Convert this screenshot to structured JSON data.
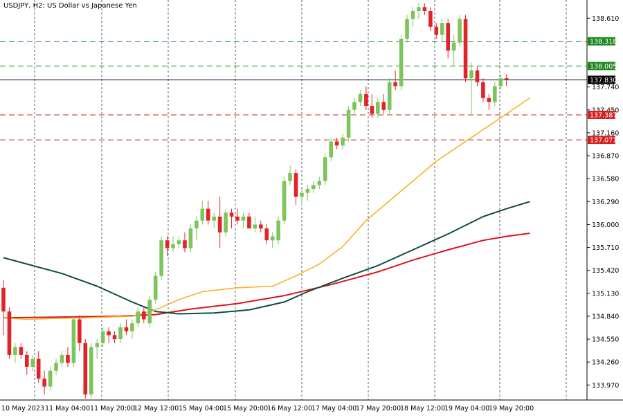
{
  "chart_data": {
    "type": "candlestick",
    "title": "USDJPY, H2:  US Dollar vs Japanese Yen",
    "ylim": [
      133.78,
      138.84
    ],
    "y_ticks": [
      "138.610",
      "137.740",
      "137.450",
      "137.160",
      "136.870",
      "136.580",
      "136.290",
      "136.000",
      "135.710",
      "135.420",
      "135.130",
      "134.840",
      "134.550",
      "134.260",
      "133.970"
    ],
    "x_labels": [
      "10 May 2023",
      "11 May 04:00",
      "11 May 20:00",
      "12 May 12:00",
      "15 May 04:00",
      "15 May 20:00",
      "16 May 12:00",
      "17 May 04:00",
      "17 May 20:00",
      "18 May 12:00",
      "19 May 04:00",
      "19 May 20:00"
    ],
    "current_price": {
      "value": "137.830",
      "color": "#000000"
    },
    "levels": [
      {
        "value": "138.318",
        "color": "#1e8a1e"
      },
      {
        "value": "138.005",
        "color": "#1e8a1e"
      },
      {
        "value": "137.387",
        "color": "#d62020"
      },
      {
        "value": "137.071",
        "color": "#d62020"
      }
    ],
    "colors": {
      "bull": "#7dc45b",
      "bear": "#e0242a",
      "ma_fast": "#f5b324",
      "ma_mid": "#0e4d3e",
      "ma_slow": "#d9141b",
      "grid": "#333333"
    },
    "candles": [
      [
        135.2,
        135.3,
        134.6,
        134.9
      ],
      [
        134.9,
        134.95,
        134.3,
        134.35
      ],
      [
        134.35,
        134.5,
        134.25,
        134.45
      ],
      [
        134.45,
        134.5,
        134.3,
        134.35
      ],
      [
        134.35,
        134.4,
        134.1,
        134.2
      ],
      [
        134.2,
        134.35,
        134.15,
        134.3
      ],
      [
        134.3,
        134.4,
        134.0,
        134.05
      ],
      [
        134.05,
        134.15,
        133.85,
        133.95
      ],
      [
        133.95,
        134.2,
        133.9,
        134.15
      ],
      [
        134.15,
        134.3,
        134.1,
        134.25
      ],
      [
        134.25,
        134.4,
        134.2,
        134.35
      ],
      [
        134.35,
        134.45,
        134.2,
        134.25
      ],
      [
        134.25,
        134.85,
        134.2,
        134.8
      ],
      [
        134.8,
        134.85,
        134.4,
        134.5
      ],
      [
        134.5,
        134.55,
        133.8,
        133.85
      ],
      [
        133.85,
        134.5,
        133.8,
        134.45
      ],
      [
        134.45,
        134.55,
        134.3,
        134.5
      ],
      [
        134.5,
        134.7,
        134.45,
        134.65
      ],
      [
        134.65,
        134.7,
        134.5,
        134.6
      ],
      [
        134.6,
        134.65,
        134.5,
        134.55
      ],
      [
        134.55,
        134.75,
        134.5,
        134.7
      ],
      [
        134.7,
        134.8,
        134.6,
        134.65
      ],
      [
        134.65,
        134.8,
        134.55,
        134.75
      ],
      [
        134.75,
        134.95,
        134.7,
        134.9
      ],
      [
        134.9,
        134.95,
        134.75,
        134.8
      ],
      [
        134.75,
        135.1,
        134.7,
        135.05
      ],
      [
        135.05,
        135.4,
        135.0,
        135.35
      ],
      [
        135.35,
        135.85,
        135.3,
        135.8
      ],
      [
        135.8,
        135.85,
        135.6,
        135.7
      ],
      [
        135.7,
        135.85,
        135.65,
        135.75
      ],
      [
        135.75,
        135.85,
        135.7,
        135.8
      ],
      [
        135.8,
        135.9,
        135.65,
        135.7
      ],
      [
        135.7,
        136.0,
        135.65,
        135.95
      ],
      [
        135.95,
        136.1,
        135.8,
        136.05
      ],
      [
        136.05,
        136.3,
        136.0,
        136.2
      ],
      [
        136.2,
        136.3,
        136.0,
        136.05
      ],
      [
        136.05,
        136.15,
        135.95,
        136.1
      ],
      [
        136.1,
        136.35,
        135.7,
        135.9
      ],
      [
        135.9,
        136.2,
        135.85,
        136.15
      ],
      [
        136.15,
        136.2,
        135.95,
        136.1
      ],
      [
        136.1,
        136.2,
        136.0,
        136.05
      ],
      [
        136.05,
        136.15,
        135.95,
        136.1
      ],
      [
        136.1,
        136.15,
        135.95,
        135.95
      ],
      [
        135.95,
        136.1,
        135.9,
        136.0
      ],
      [
        136.0,
        136.05,
        135.9,
        135.95
      ],
      [
        135.95,
        136.0,
        135.75,
        135.8
      ],
      [
        135.8,
        135.9,
        135.7,
        135.85
      ],
      [
        135.8,
        136.1,
        135.75,
        136.05
      ],
      [
        136.05,
        136.6,
        136.0,
        136.55
      ],
      [
        136.55,
        136.75,
        136.5,
        136.65
      ],
      [
        136.65,
        136.7,
        136.25,
        136.35
      ],
      [
        136.35,
        136.45,
        136.25,
        136.4
      ],
      [
        136.4,
        136.5,
        136.3,
        136.45
      ],
      [
        136.45,
        136.55,
        136.4,
        136.5
      ],
      [
        136.5,
        136.6,
        136.45,
        136.55
      ],
      [
        136.55,
        136.9,
        136.5,
        136.85
      ],
      [
        136.85,
        137.1,
        136.8,
        137.05
      ],
      [
        137.05,
        137.1,
        136.95,
        137.0
      ],
      [
        137.0,
        137.15,
        136.95,
        137.1
      ],
      [
        137.1,
        137.5,
        137.05,
        137.45
      ],
      [
        137.45,
        137.6,
        137.4,
        137.55
      ],
      [
        137.55,
        137.7,
        137.5,
        137.65
      ],
      [
        137.65,
        137.75,
        137.45,
        137.5
      ],
      [
        137.5,
        137.65,
        137.35,
        137.4
      ],
      [
        137.4,
        137.6,
        137.35,
        137.55
      ],
      [
        137.55,
        137.65,
        137.4,
        137.45
      ],
      [
        137.45,
        137.85,
        137.4,
        137.8
      ],
      [
        137.8,
        137.95,
        137.7,
        137.75
      ],
      [
        137.75,
        138.4,
        137.7,
        138.35
      ],
      [
        138.35,
        138.65,
        138.3,
        138.6
      ],
      [
        138.6,
        138.75,
        138.5,
        138.7
      ],
      [
        138.7,
        138.8,
        138.6,
        138.75
      ],
      [
        138.75,
        138.8,
        138.65,
        138.7
      ],
      [
        138.7,
        138.75,
        138.45,
        138.5
      ],
      [
        138.5,
        138.55,
        138.35,
        138.4
      ],
      [
        138.4,
        138.6,
        138.3,
        138.55
      ],
      [
        138.55,
        138.6,
        138.1,
        138.2
      ],
      [
        138.2,
        138.4,
        138.0,
        138.3
      ],
      [
        138.3,
        138.65,
        138.25,
        138.6
      ],
      [
        138.6,
        138.65,
        137.8,
        137.85
      ],
      [
        137.85,
        138.05,
        137.4,
        137.95
      ],
      [
        137.95,
        138.0,
        137.75,
        137.8
      ],
      [
        137.8,
        137.85,
        137.55,
        137.6
      ],
      [
        137.6,
        137.65,
        137.45,
        137.55
      ],
      [
        137.55,
        137.8,
        137.5,
        137.75
      ],
      [
        137.75,
        137.9,
        137.7,
        137.85
      ],
      [
        137.85,
        137.9,
        137.75,
        137.83
      ]
    ],
    "ma_fast": [
      [
        0,
        134.82
      ],
      [
        4,
        134.8
      ],
      [
        8,
        134.81
      ],
      [
        14,
        134.82
      ],
      [
        18,
        134.83
      ],
      [
        22,
        134.84
      ],
      [
        26,
        134.92
      ],
      [
        30,
        135.05
      ],
      [
        34,
        135.15
      ],
      [
        40,
        135.2
      ],
      [
        46,
        135.22
      ],
      [
        50,
        135.35
      ],
      [
        54,
        135.5
      ],
      [
        58,
        135.72
      ],
      [
        62,
        136.05
      ],
      [
        66,
        136.3
      ],
      [
        70,
        136.55
      ],
      [
        74,
        136.8
      ],
      [
        78,
        137.0
      ],
      [
        82,
        137.2
      ],
      [
        86,
        137.4
      ],
      [
        90,
        137.6
      ]
    ],
    "ma_mid": [
      [
        0,
        135.58
      ],
      [
        4,
        135.5
      ],
      [
        10,
        135.38
      ],
      [
        16,
        135.22
      ],
      [
        22,
        135.02
      ],
      [
        26,
        134.9
      ],
      [
        30,
        134.87
      ],
      [
        36,
        134.88
      ],
      [
        42,
        134.92
      ],
      [
        48,
        135.02
      ],
      [
        52,
        135.15
      ],
      [
        58,
        135.32
      ],
      [
        64,
        135.48
      ],
      [
        70,
        135.68
      ],
      [
        76,
        135.88
      ],
      [
        82,
        136.1
      ],
      [
        86,
        136.2
      ],
      [
        90,
        136.29
      ]
    ],
    "ma_slow": [
      [
        0,
        134.82
      ],
      [
        10,
        134.83
      ],
      [
        20,
        134.84
      ],
      [
        26,
        134.86
      ],
      [
        32,
        134.93
      ],
      [
        40,
        135.0
      ],
      [
        48,
        135.1
      ],
      [
        56,
        135.24
      ],
      [
        64,
        135.4
      ],
      [
        70,
        135.55
      ],
      [
        76,
        135.68
      ],
      [
        82,
        135.8
      ],
      [
        86,
        135.85
      ],
      [
        90,
        135.89
      ]
    ]
  }
}
